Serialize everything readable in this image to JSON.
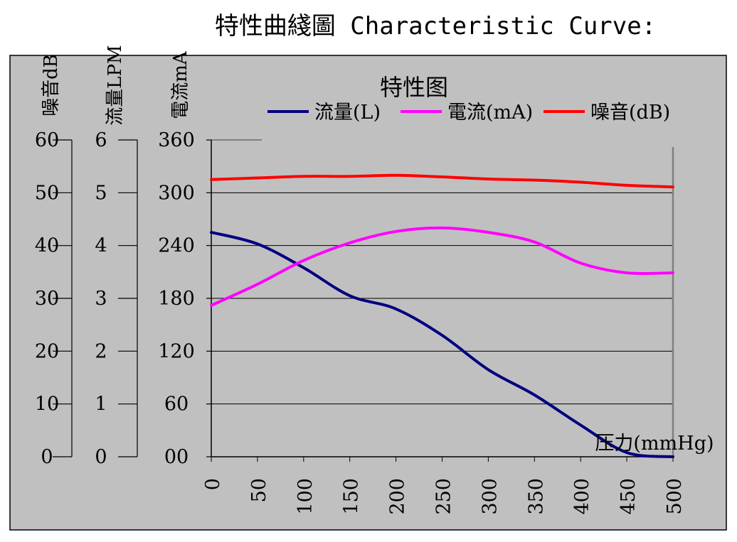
{
  "page": {
    "title": "特性曲綫圖 Characteristic Curve:"
  },
  "chart_data": {
    "type": "line",
    "title": "特性图",
    "xlabel": "压力(mmHg)",
    "xlim": [
      0,
      500
    ],
    "x_ticks": [
      0,
      50,
      100,
      150,
      200,
      250,
      300,
      350,
      400,
      450,
      500
    ],
    "x_tick_labels": [
      "0",
      "50",
      "100",
      "150",
      "200",
      "250",
      "300",
      "350",
      "400",
      "450",
      "500"
    ],
    "legend_position": "top",
    "grid": true,
    "axes": [
      {
        "id": "noise",
        "label": "噪音dB",
        "range": [
          0,
          60
        ],
        "ticks": [
          0,
          10,
          20,
          30,
          40,
          50,
          60
        ],
        "tick_labels": [
          "0",
          "10",
          "20",
          "30",
          "40",
          "50",
          "60"
        ]
      },
      {
        "id": "flow",
        "label": "流量LPM",
        "range": [
          0,
          6
        ],
        "ticks": [
          0,
          1,
          2,
          3,
          4,
          5,
          6
        ],
        "tick_labels": [
          "0",
          "1",
          "2",
          "3",
          "4",
          "5",
          "6"
        ]
      },
      {
        "id": "current",
        "label": "電流mA",
        "range": [
          0,
          360
        ],
        "ticks": [
          0,
          60,
          120,
          180,
          240,
          300,
          360
        ],
        "tick_labels": [
          "00",
          "60",
          "120",
          "180",
          "240",
          "300",
          "360"
        ]
      }
    ],
    "x": [
      0,
      50,
      100,
      150,
      200,
      250,
      300,
      350,
      400,
      450,
      500
    ],
    "series": [
      {
        "name": "流量(L)",
        "axis": "flow",
        "color": "#000080",
        "values": [
          4.25,
          4.03,
          3.58,
          3.05,
          2.8,
          2.3,
          1.65,
          1.17,
          0.6,
          0.08,
          0.0
        ]
      },
      {
        "name": "電流(mA)",
        "axis": "current",
        "color": "#ff00ff",
        "values": [
          172,
          196,
          223,
          243,
          256,
          260,
          255,
          244,
          220,
          209,
          209
        ]
      },
      {
        "name": "噪音(dB)",
        "axis": "noise",
        "color": "#ff0000",
        "values": [
          52.5,
          52.8,
          53.1,
          53.1,
          53.3,
          53.0,
          52.6,
          52.4,
          52.0,
          51.4,
          51.1
        ]
      }
    ]
  }
}
